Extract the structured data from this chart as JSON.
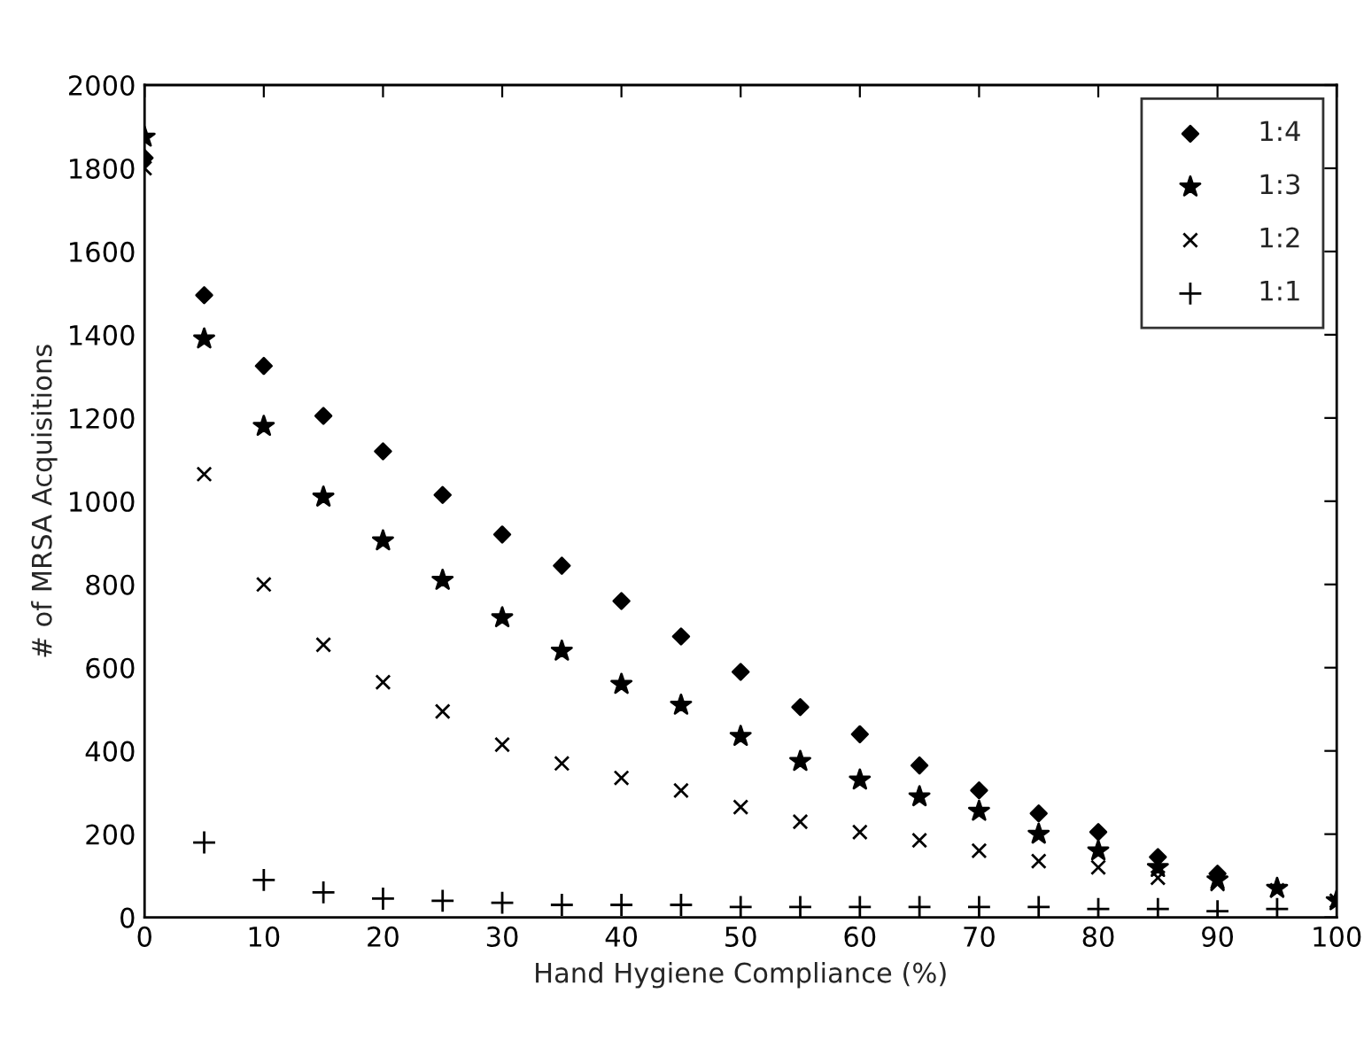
{
  "chart_data": {
    "type": "scatter",
    "xlabel": "Hand Hygiene Compliance (%)",
    "ylabel": "# of MRSA Acquisitions",
    "x": [
      0,
      5,
      10,
      15,
      20,
      25,
      30,
      35,
      40,
      45,
      50,
      55,
      60,
      65,
      70,
      75,
      80,
      85,
      90,
      95,
      100
    ],
    "series": [
      {
        "name": "1:4",
        "color": "#000000",
        "marker": "diamond",
        "values": [
          1825,
          1495,
          1325,
          1205,
          1120,
          1015,
          920,
          845,
          760,
          675,
          590,
          505,
          440,
          365,
          305,
          250,
          205,
          145,
          105,
          null,
          null
        ]
      },
      {
        "name": "1:3",
        "color": "#000000",
        "marker": "star",
        "values": [
          1875,
          1390,
          1180,
          1010,
          905,
          810,
          720,
          640,
          560,
          510,
          435,
          375,
          330,
          290,
          255,
          200,
          160,
          120,
          90,
          70,
          40
        ]
      },
      {
        "name": "1:2",
        "color": "#000000",
        "marker": "cross",
        "values": [
          1800,
          1065,
          800,
          655,
          565,
          495,
          415,
          370,
          335,
          305,
          265,
          230,
          205,
          185,
          160,
          135,
          120,
          95,
          80,
          65,
          40
        ]
      },
      {
        "name": "1:1",
        "color": "#000000",
        "marker": "plus",
        "values": [
          null,
          180,
          90,
          60,
          45,
          40,
          35,
          30,
          30,
          30,
          25,
          25,
          25,
          25,
          25,
          25,
          20,
          20,
          15,
          20,
          null
        ]
      }
    ],
    "xlim": [
      0,
      100
    ],
    "xticks": [
      0,
      10,
      20,
      30,
      40,
      50,
      60,
      70,
      80,
      90,
      100
    ],
    "ylim": [
      0,
      2000
    ],
    "yticks": [
      0,
      200,
      400,
      600,
      800,
      1000,
      1200,
      1400,
      1600,
      1800,
      2000
    ],
    "grid": false,
    "legend": "top right"
  }
}
